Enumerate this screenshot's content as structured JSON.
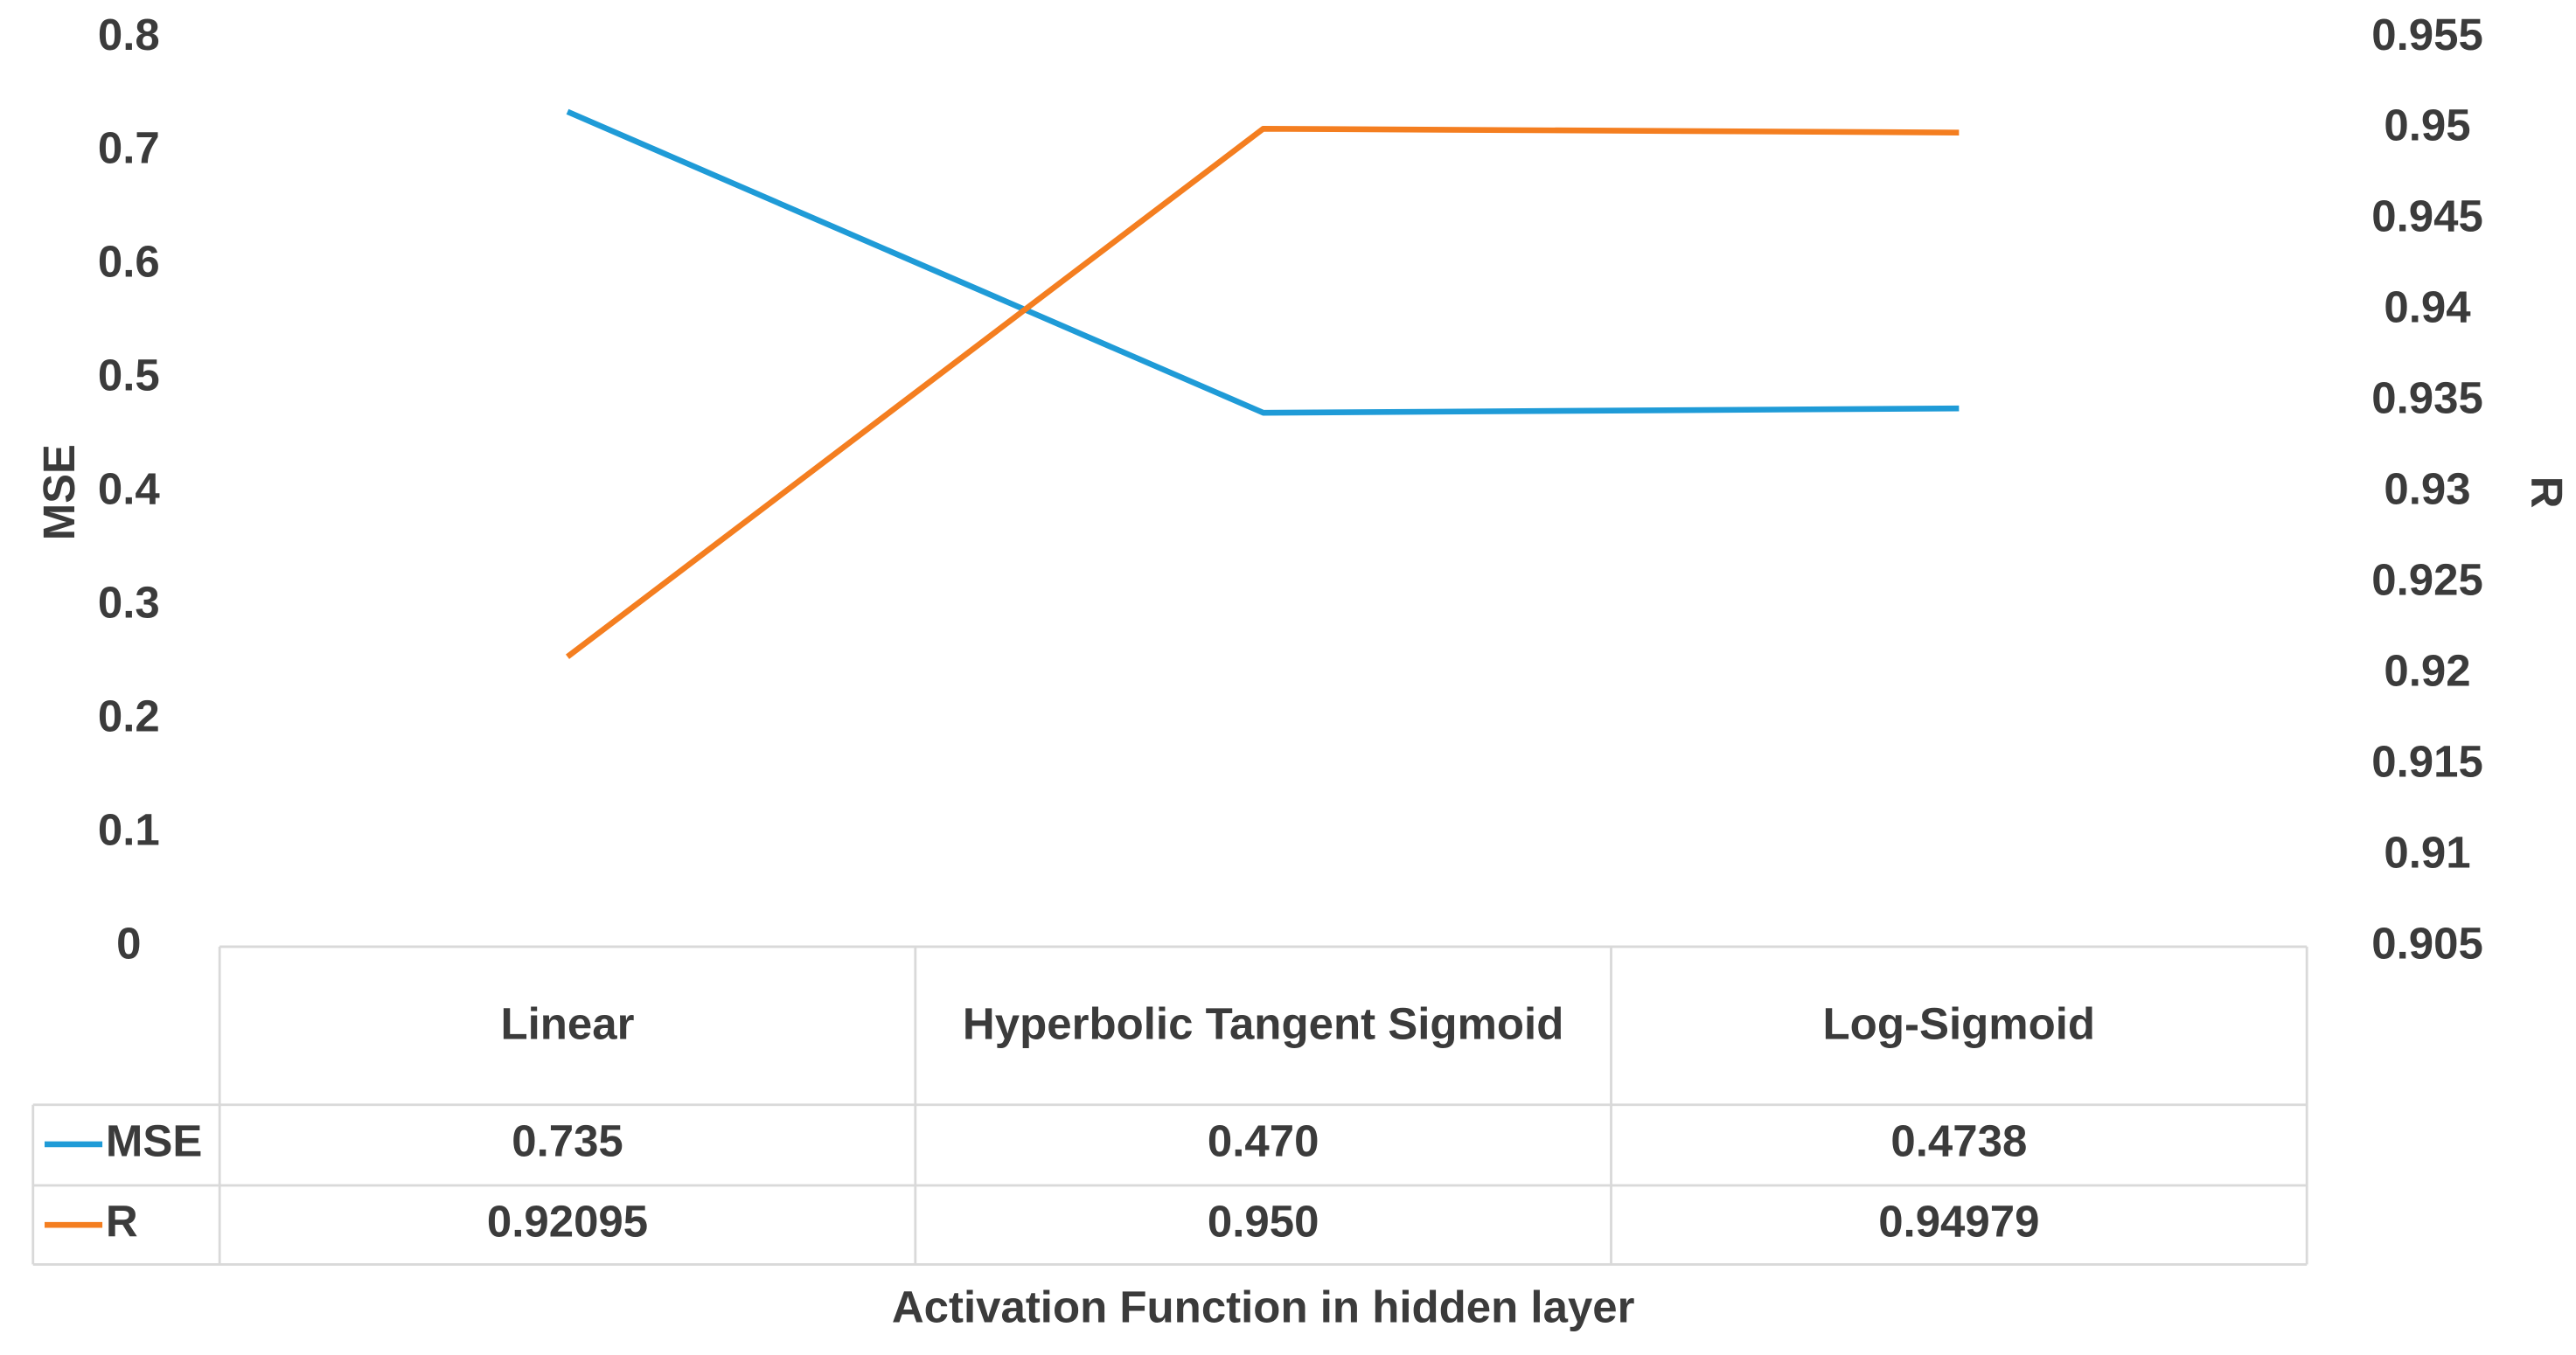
{
  "chart_data": {
    "type": "line",
    "categories": [
      "Linear",
      "Hyperbolic Tangent Sigmoid",
      "Log-Sigmoid"
    ],
    "xlabel": "Activation Function in hidden layer",
    "ylabel": "MSE",
    "y2label": "R",
    "ylim": [
      0,
      0.8
    ],
    "yticks": [
      0,
      0.1,
      0.2,
      0.3,
      0.4,
      0.5,
      0.6,
      0.7,
      0.8
    ],
    "y2lim": [
      0.905,
      0.955
    ],
    "y2ticks": [
      0.905,
      0.91,
      0.915,
      0.92,
      0.925,
      0.93,
      0.935,
      0.94,
      0.945,
      0.95,
      0.955
    ],
    "series": [
      {
        "name": "MSE",
        "color": "#1f9bd7",
        "values": [
          0.735,
          0.47,
          0.4738
        ],
        "value_labels": [
          "0.735",
          "0.470",
          "0.4738"
        ]
      },
      {
        "name": "R",
        "color": "#f47e20",
        "axis": "y2",
        "values": [
          0.92095,
          0.95,
          0.94979
        ],
        "value_labels": [
          "0.92095",
          "0.950",
          "0.94979"
        ]
      }
    ]
  }
}
